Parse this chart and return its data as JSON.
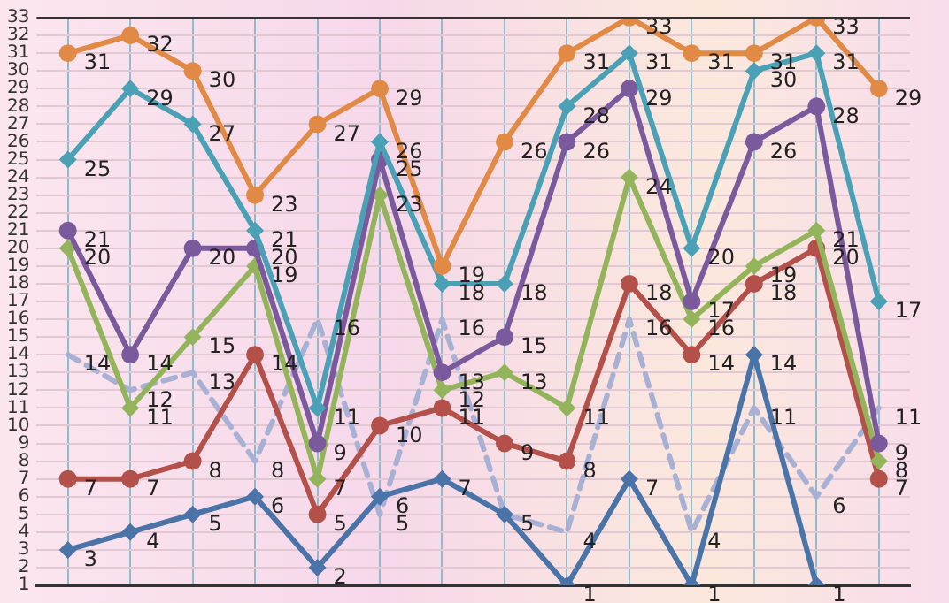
{
  "chart_data": {
    "type": "line",
    "categories": [
      null,
      null,
      null,
      null,
      null,
      null,
      null,
      null,
      null,
      null,
      null,
      null,
      null,
      null
    ],
    "series": [
      {
        "color": "#e08a45",
        "marker": "circle",
        "values": [
          31,
          32,
          30,
          23,
          27,
          29,
          19,
          26,
          31,
          33,
          31,
          31,
          33,
          29
        ]
      },
      {
        "color": "#4aa0b4",
        "marker": "diamond",
        "values": [
          25,
          29,
          27,
          21,
          11,
          26,
          18,
          18,
          28,
          31,
          20,
          30,
          31,
          17
        ]
      },
      {
        "color": "#7a5a9c",
        "marker": "circle",
        "values": [
          21,
          14,
          20,
          20,
          9,
          25,
          13,
          15,
          26,
          29,
          17,
          26,
          28,
          9
        ]
      },
      {
        "color": "#94b45c",
        "marker": "diamond",
        "values": [
          20,
          11,
          15,
          19,
          7,
          23,
          12,
          13,
          11,
          24,
          16,
          19,
          21,
          8
        ]
      },
      {
        "color": "#b4504a",
        "marker": "circle",
        "values": [
          7,
          7,
          8,
          14,
          5,
          10,
          11,
          9,
          8,
          18,
          14,
          18,
          20,
          7
        ]
      },
      {
        "color": "#4a74a8",
        "marker": "diamond",
        "values": [
          3,
          4,
          5,
          6,
          2,
          6,
          7,
          5,
          1,
          7,
          1,
          14,
          1,
          null
        ]
      },
      {
        "color": "#a8b0d4",
        "marker": "none",
        "line_style": "dashed",
        "values": [
          14,
          12,
          13,
          8,
          16,
          5,
          16,
          5,
          4,
          16,
          4,
          11,
          6,
          11
        ],
        "value_labels": [
          "14",
          "12",
          "13",
          "8",
          "16",
          "5",
          "16",
          null,
          "4",
          "16",
          "4",
          "11",
          "6",
          "11"
        ]
      }
    ],
    "ylim": [
      1,
      33
    ],
    "yticks": [
      1,
      2,
      3,
      4,
      5,
      6,
      7,
      8,
      9,
      10,
      11,
      12,
      13,
      14,
      15,
      16,
      17,
      18,
      19,
      20,
      21,
      22,
      23,
      24,
      25,
      26,
      27,
      28,
      29,
      30,
      31,
      32,
      33
    ],
    "grid": true,
    "data_labels": true,
    "tick_labels": "y"
  }
}
